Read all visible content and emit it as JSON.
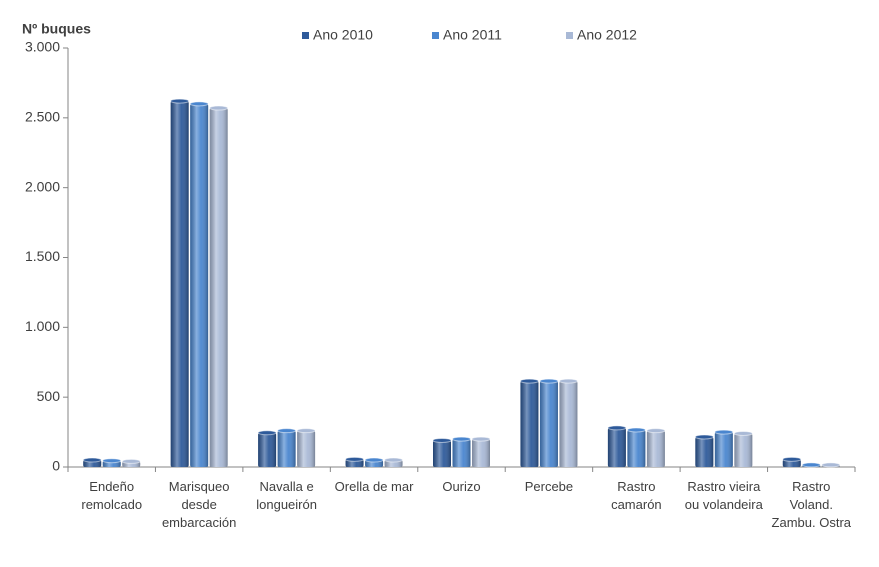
{
  "chart_data": {
    "type": "bar",
    "y_label": "Nº buques",
    "categories": [
      "Endeño remolcado",
      "Marisqueo desde embarcación",
      "Navalla e longueirón",
      "Orella de mar",
      "Ourizo",
      "Percebe",
      "Rastro camarón",
      "Rastro vieira ou volandeira",
      "Rastro Voland. Zambu. Ostra"
    ],
    "series": [
      {
        "name": "Ano 2010",
        "color": "#2e5a9a",
        "values": [
          50,
          2620,
          245,
          55,
          190,
          615,
          280,
          215,
          55
        ]
      },
      {
        "name": "Ano 2011",
        "color": "#4a86cf",
        "values": [
          45,
          2600,
          260,
          50,
          200,
          615,
          265,
          250,
          15
        ]
      },
      {
        "name": "Ano 2012",
        "color": "#a9b9d6",
        "values": [
          40,
          2570,
          260,
          50,
          200,
          615,
          260,
          240,
          15
        ]
      }
    ],
    "ylim": [
      0,
      3000
    ],
    "yticks": [
      0,
      500,
      {
        "value": 1000,
        "label": "1.000"
      },
      {
        "value": 1500,
        "label": "1.500"
      },
      {
        "value": 2000,
        "label": "2.000"
      },
      {
        "value": 2500,
        "label": "2.500"
      },
      {
        "value": 3000,
        "label": "3.000"
      }
    ],
    "grid": false
  }
}
